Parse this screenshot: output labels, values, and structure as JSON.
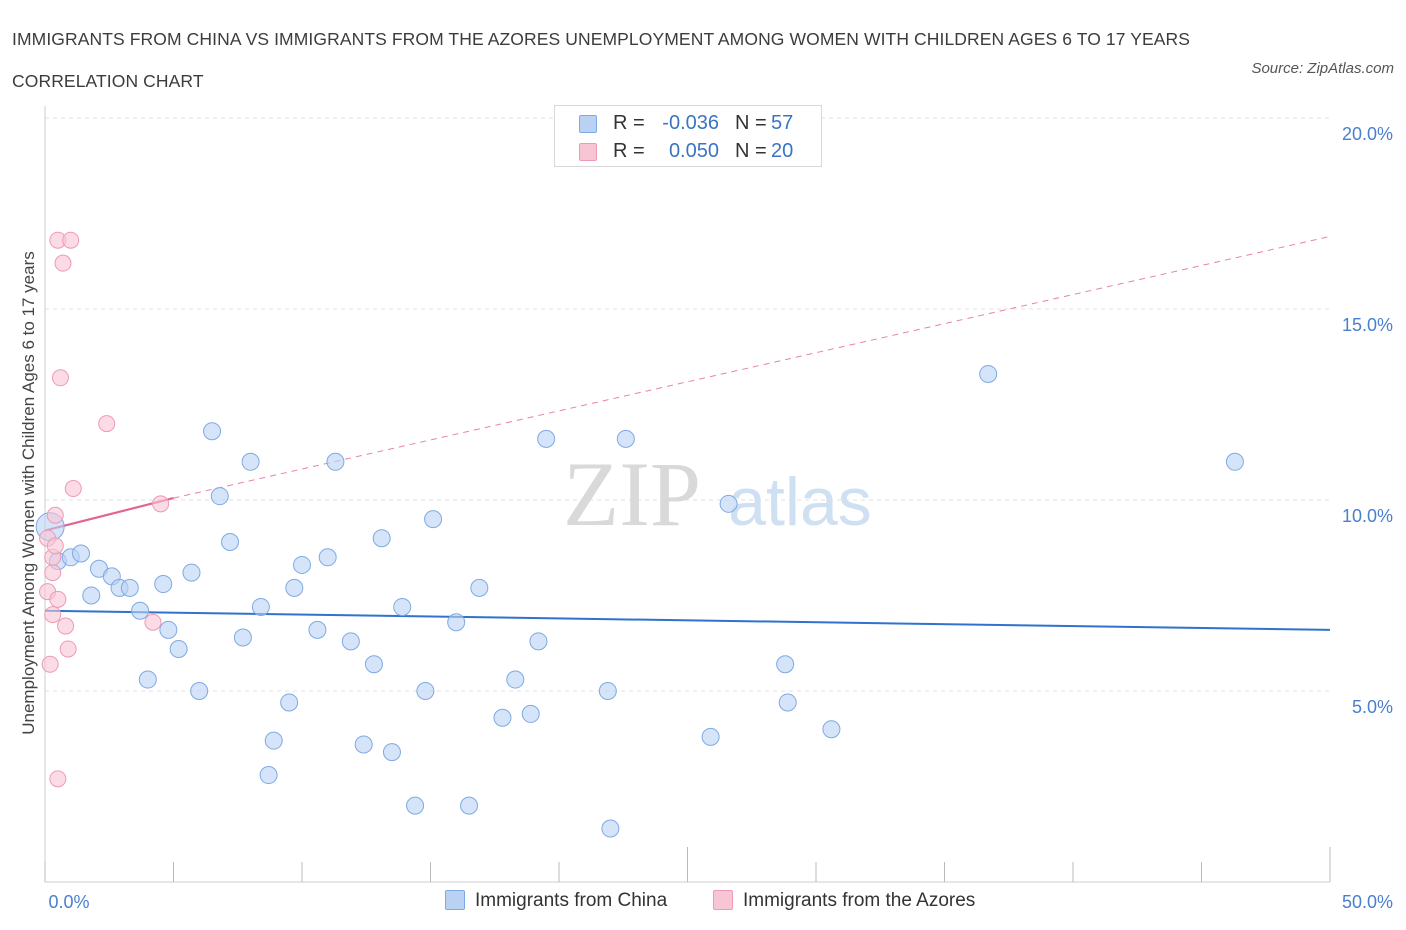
{
  "header": {
    "title": "IMMIGRANTS FROM CHINA VS IMMIGRANTS FROM THE AZORES UNEMPLOYMENT AMONG WOMEN WITH CHILDREN AGES 6 TO 17 YEARS CORRELATION CHART",
    "source": "Source: ZipAtlas.com"
  },
  "watermark": {
    "zip": "ZIP",
    "atlas": "atlas"
  },
  "legend": {
    "china": {
      "r_label": "R =",
      "r_value": "-0.036",
      "n_label": "N =",
      "n_value": "57"
    },
    "azores": {
      "r_label": "R =",
      "r_value": "0.050",
      "n_label": "N =",
      "n_value": "20"
    }
  },
  "colors": {
    "china_fill": "#b9d2f4",
    "china_stroke": "#7eaae3",
    "china_line": "#2f73cc",
    "azores_fill": "#f8c5d5",
    "azores_stroke": "#ee9ab3",
    "azores_line": "#e0668f",
    "tick_label": "#4a7fcf",
    "grid": "#e0e0e0"
  },
  "chart_data": {
    "type": "scatter",
    "title": "IMMIGRANTS FROM CHINA VS IMMIGRANTS FROM THE AZORES UNEMPLOYMENT AMONG WOMEN WITH CHILDREN AGES 6 TO 17 YEARS CORRELATION CHART",
    "xlabel": "",
    "ylabel": "Unemployment Among Women with Children Ages 6 to 17 years",
    "xlim": [
      0,
      50
    ],
    "ylim": [
      0,
      20
    ],
    "x_tick_labels": [
      "0.0%",
      "50.0%"
    ],
    "y_ticks": [
      5,
      10,
      15,
      20
    ],
    "y_tick_labels": [
      "5.0%",
      "10.0%",
      "15.0%",
      "20.0%"
    ],
    "grid": true,
    "legend_position": "top-center",
    "series": [
      {
        "name": "Immigrants from China",
        "points": [
          [
            0.2,
            9.3
          ],
          [
            0.5,
            8.4
          ],
          [
            1.0,
            8.5
          ],
          [
            1.4,
            8.6
          ],
          [
            1.8,
            7.5
          ],
          [
            2.1,
            8.2
          ],
          [
            2.6,
            8.0
          ],
          [
            2.9,
            7.7
          ],
          [
            3.3,
            7.7
          ],
          [
            3.7,
            7.1
          ],
          [
            4.0,
            5.3
          ],
          [
            4.6,
            7.8
          ],
          [
            4.8,
            6.6
          ],
          [
            5.2,
            6.1
          ],
          [
            5.7,
            8.1
          ],
          [
            6.0,
            5.0
          ],
          [
            6.5,
            11.8
          ],
          [
            6.8,
            10.1
          ],
          [
            7.2,
            8.9
          ],
          [
            7.7,
            6.4
          ],
          [
            8.0,
            11.0
          ],
          [
            8.4,
            7.2
          ],
          [
            8.7,
            2.8
          ],
          [
            8.9,
            3.7
          ],
          [
            9.5,
            4.7
          ],
          [
            9.7,
            7.7
          ],
          [
            10.0,
            8.3
          ],
          [
            10.6,
            6.6
          ],
          [
            11.0,
            8.5
          ],
          [
            11.3,
            11.0
          ],
          [
            11.9,
            6.3
          ],
          [
            12.4,
            3.6
          ],
          [
            12.8,
            5.7
          ],
          [
            13.1,
            9.0
          ],
          [
            13.5,
            3.4
          ],
          [
            13.9,
            7.2
          ],
          [
            14.4,
            2.0
          ],
          [
            14.8,
            5.0
          ],
          [
            15.1,
            9.5
          ],
          [
            16.0,
            6.8
          ],
          [
            16.5,
            2.0
          ],
          [
            16.9,
            7.7
          ],
          [
            17.8,
            4.3
          ],
          [
            18.3,
            5.3
          ],
          [
            18.9,
            4.4
          ],
          [
            19.2,
            6.3
          ],
          [
            19.5,
            11.6
          ],
          [
            21.9,
            5.0
          ],
          [
            22.0,
            1.4
          ],
          [
            22.6,
            11.6
          ],
          [
            25.9,
            3.8
          ],
          [
            26.6,
            9.9
          ],
          [
            28.8,
            5.7
          ],
          [
            28.9,
            4.7
          ],
          [
            30.6,
            4.0
          ],
          [
            36.7,
            13.3
          ],
          [
            46.3,
            11.0
          ]
        ],
        "trend": {
          "x": [
            0,
            50
          ],
          "y": [
            7.1,
            6.6
          ]
        }
      },
      {
        "name": "Immigrants from the Azores",
        "points": [
          [
            0.1,
            9.0
          ],
          [
            0.1,
            7.6
          ],
          [
            0.2,
            5.7
          ],
          [
            0.3,
            8.1
          ],
          [
            0.3,
            8.5
          ],
          [
            0.3,
            7.0
          ],
          [
            0.4,
            8.8
          ],
          [
            0.4,
            9.6
          ],
          [
            0.5,
            2.7
          ],
          [
            0.5,
            16.8
          ],
          [
            0.5,
            7.4
          ],
          [
            0.6,
            13.2
          ],
          [
            0.7,
            16.2
          ],
          [
            0.8,
            6.7
          ],
          [
            0.9,
            6.1
          ],
          [
            1.0,
            16.8
          ],
          [
            1.1,
            10.3
          ],
          [
            2.4,
            12.0
          ],
          [
            4.2,
            6.8
          ],
          [
            4.5,
            9.9
          ]
        ],
        "trend_solid": {
          "x": [
            0,
            5
          ],
          "y": [
            9.2,
            10.05
          ]
        },
        "trend_dashed": {
          "x": [
            5,
            50
          ],
          "y": [
            10.05,
            16.9
          ]
        }
      }
    ]
  },
  "bottom_legend": {
    "china_label": "Immigrants from China",
    "azores_label": "Immigrants from the Azores"
  }
}
